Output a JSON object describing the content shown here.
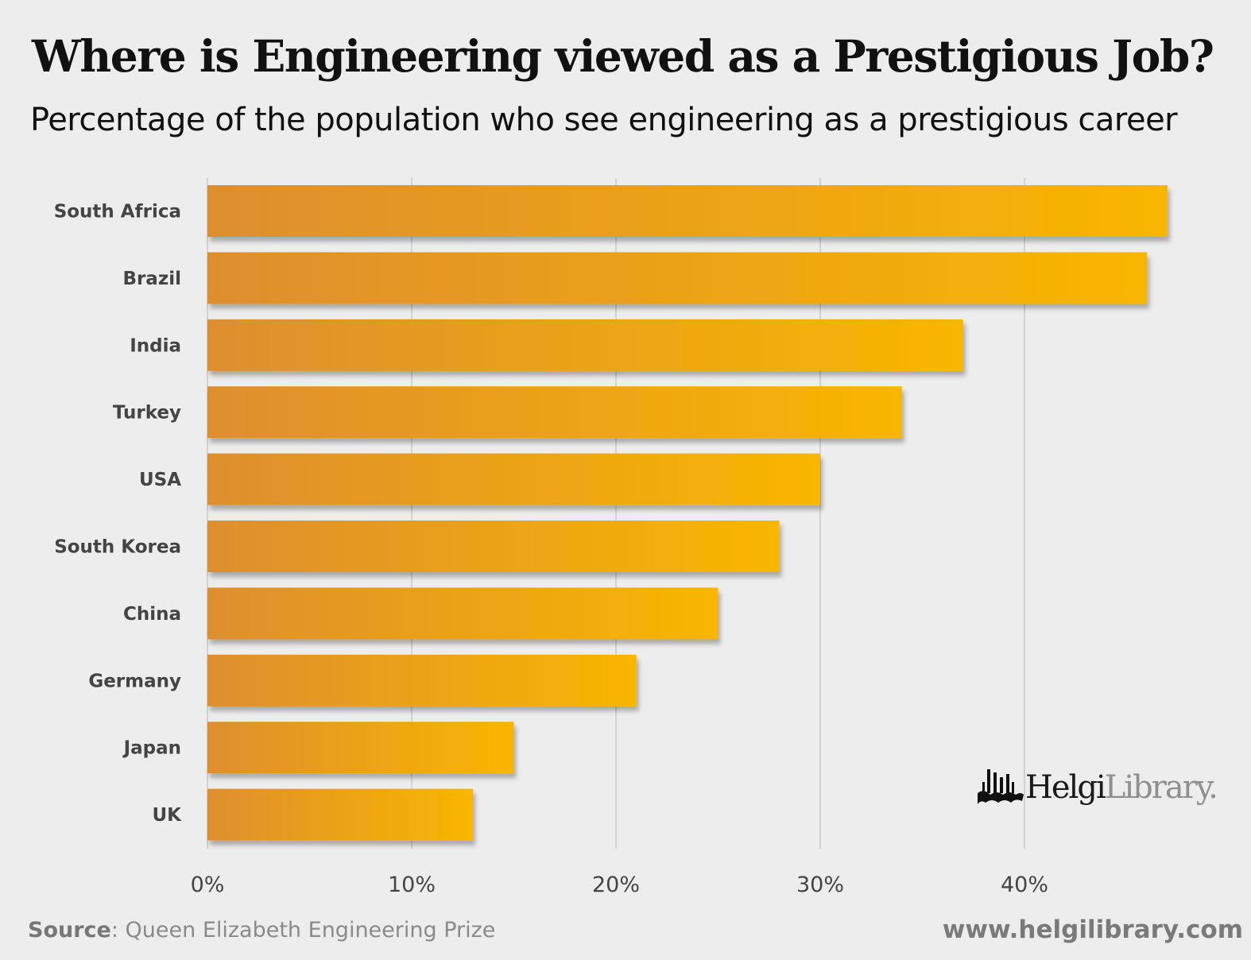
{
  "title": "Where is Engineering viewed as a Prestigious Job?",
  "subtitle": "Percentage of the population who see engineering as a prestigious career",
  "source_label": "Source",
  "source_text": ": Queen Elizabeth Engineering Prize",
  "url": "www.helgilibrary.com",
  "logo": {
    "part1": "Helgi",
    "part2": "Library.",
    "icon": "helgi-library-bars-icon"
  },
  "colors": {
    "bar_start": "#df8e2f",
    "bar_end": "#f9b600",
    "grid": "#d2d2d2",
    "background": "#ededed"
  },
  "chart_data": {
    "type": "bar",
    "orientation": "horizontal",
    "title": "Where is Engineering viewed as a Prestigious Job?",
    "subtitle": "Percentage of the population who see engineering as a prestigious career",
    "categories": [
      "South Africa",
      "Brazil",
      "India",
      "Turkey",
      "USA",
      "South Korea",
      "China",
      "Germany",
      "Japan",
      "UK"
    ],
    "values": [
      47,
      46,
      37,
      34,
      30,
      28,
      25,
      21,
      15,
      13
    ],
    "unit": "%",
    "xlabel": "",
    "ylabel": "",
    "xlim": [
      0,
      50
    ],
    "xticks": [
      0,
      10,
      20,
      30,
      40
    ],
    "xtick_labels": [
      "0%",
      "10%",
      "20%",
      "30%",
      "40%"
    ],
    "grid": "vertical",
    "legend": "none"
  }
}
